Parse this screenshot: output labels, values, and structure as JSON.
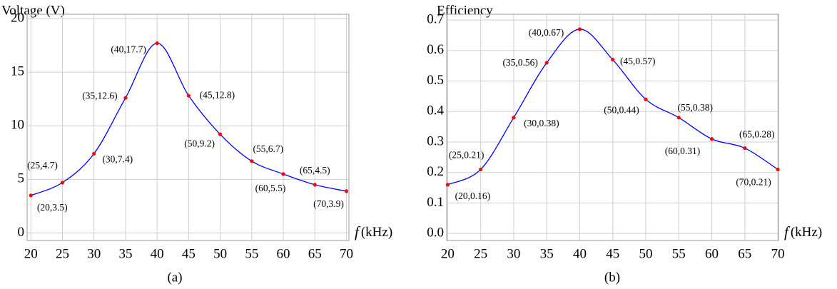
{
  "chart_data": [
    {
      "type": "line",
      "title": "Voltage (V)",
      "x_label_symbol": "f",
      "x_label_unit": "(kHz)",
      "caption": "(a)",
      "x": [
        20,
        25,
        30,
        35,
        40,
        45,
        50,
        55,
        60,
        65,
        70
      ],
      "values": [
        3.5,
        4.7,
        7.4,
        12.6,
        17.7,
        12.8,
        9.2,
        6.7,
        5.5,
        4.5,
        3.9
      ],
      "value_labels": [
        "(20,3.5)",
        "(25,4.7)",
        "(30,7.4)",
        "(35,12.6)",
        "(40,17.7)",
        "(45,12.8)",
        "(50,9.2)",
        "(55,6.7)",
        "(60,5.5)",
        "(65,4.5)",
        "(70,3.9)"
      ],
      "color": "#0000ff",
      "marker_color": "#ff0000",
      "xlim": [
        19.4,
        70.4
      ],
      "ylim": [
        -0.7,
        20.4
      ],
      "xticks": [
        20,
        25,
        30,
        35,
        40,
        45,
        50,
        55,
        60,
        65,
        70
      ],
      "yticks": [
        0,
        5,
        10,
        15,
        20
      ],
      "grid": true
    },
    {
      "type": "line",
      "title": "Efficiency",
      "x_label_symbol": "f",
      "x_label_unit": "(kHz)",
      "caption": "(b)",
      "x": [
        20,
        25,
        30,
        35,
        40,
        45,
        50,
        55,
        60,
        65,
        70
      ],
      "values": [
        0.16,
        0.21,
        0.38,
        0.56,
        0.67,
        0.57,
        0.44,
        0.38,
        0.31,
        0.28,
        0.21
      ],
      "value_labels": [
        "(20,0.16)",
        "(25,0.21)",
        "(30,0.38)",
        "(35,0.56)",
        "(40,0.67)",
        "(45,0.57)",
        "(50,0.44)",
        "(55,0.38)",
        "(60,0.31)",
        "(65,0.28)",
        "(70,0.21)"
      ],
      "color": "#0000ff",
      "marker_color": "#ff0000",
      "xlim": [
        19.85,
        70.1
      ],
      "ylim": [
        -0.023,
        0.719
      ],
      "xticks": [
        20,
        25,
        30,
        35,
        40,
        45,
        50,
        55,
        60,
        65,
        70
      ],
      "yticks": [
        {
          "value": 0,
          "label": "0.0"
        },
        0.1,
        0.2,
        0.3,
        0.4,
        0.5,
        0.6,
        0.7
      ],
      "grid": true
    }
  ]
}
